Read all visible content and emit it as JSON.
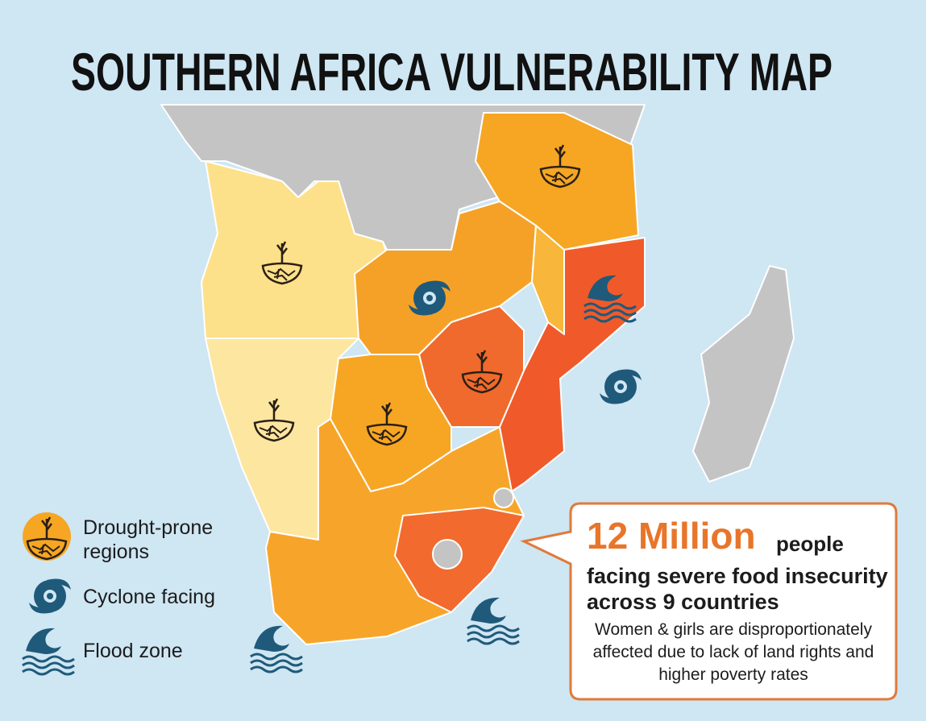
{
  "title": "SOUTHERN AFRICA VULNERABILITY MAP",
  "legend": [
    {
      "label": "Drought-prone regions"
    },
    {
      "label": "Cyclone facing"
    },
    {
      "label": "Flood zone"
    }
  ],
  "callout": {
    "headline": "12 Million",
    "headline_suffix": "people",
    "line_2": "facing severe food insecurity",
    "line_3": "across 9 countries",
    "note": "Women & girls are disproportionately affected due to lack of land rights and higher poverty rates"
  }
}
